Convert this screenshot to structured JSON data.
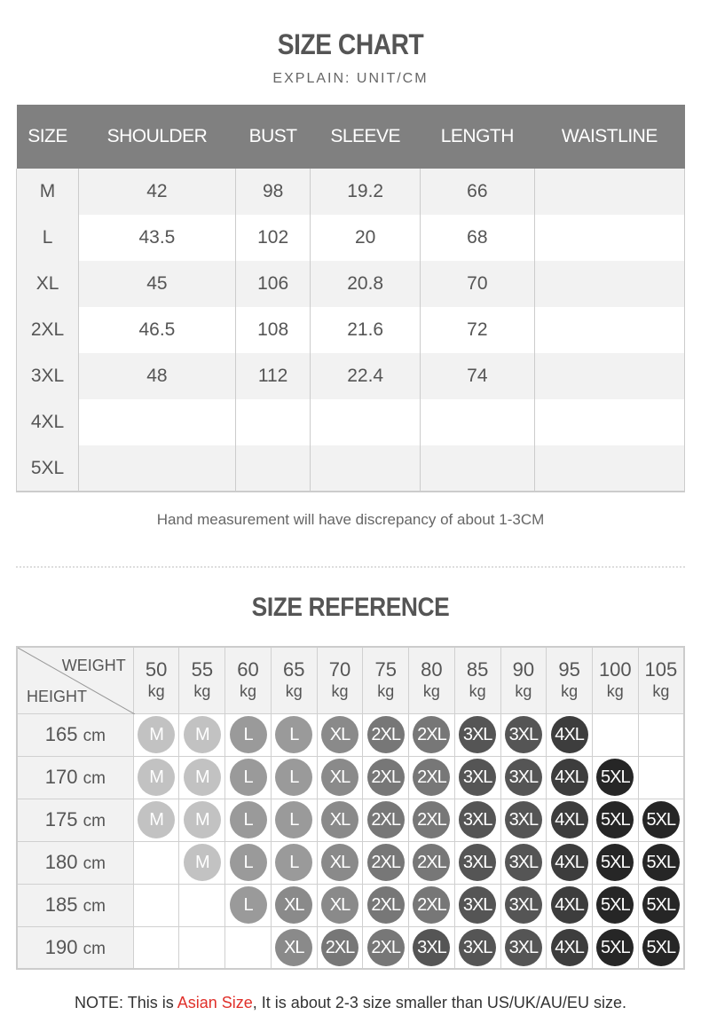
{
  "size_chart": {
    "title": "SIZE CHART",
    "subtitle": "EXPLAIN: UNIT/CM",
    "headers": [
      "SIZE",
      "SHOULDER",
      "BUST",
      "SLEEVE",
      "LENGTH",
      "WAISTLINE"
    ],
    "rows": [
      [
        "M",
        "42",
        "98",
        "19.2",
        "66",
        ""
      ],
      [
        "L",
        "43.5",
        "102",
        "20",
        "68",
        ""
      ],
      [
        "XL",
        "45",
        "106",
        "20.8",
        "70",
        ""
      ],
      [
        "2XL",
        "46.5",
        "108",
        "21.6",
        "72",
        ""
      ],
      [
        "3XL",
        "48",
        "112",
        "22.4",
        "74",
        ""
      ],
      [
        "4XL",
        "",
        "",
        "",
        "",
        ""
      ],
      [
        "5XL",
        "",
        "",
        "",
        "",
        ""
      ]
    ],
    "note": "Hand measurement will have discrepancy of about 1-3CM"
  },
  "size_reference": {
    "title": "SIZE REFERENCE",
    "weight_label": "WEIGHT",
    "height_label": "HEIGHT",
    "weights": [
      "50",
      "55",
      "60",
      "65",
      "70",
      "75",
      "80",
      "85",
      "90",
      "95",
      "100",
      "105"
    ],
    "weight_unit": "kg",
    "height_unit": "cm",
    "rows": [
      {
        "height": "165",
        "sizes": [
          "M",
          "M",
          "L",
          "L",
          "XL",
          "2XL",
          "2XL",
          "3XL",
          "3XL",
          "4XL",
          "",
          ""
        ]
      },
      {
        "height": "170",
        "sizes": [
          "M",
          "M",
          "L",
          "L",
          "XL",
          "2XL",
          "2XL",
          "3XL",
          "3XL",
          "4XL",
          "5XL",
          ""
        ]
      },
      {
        "height": "175",
        "sizes": [
          "M",
          "M",
          "L",
          "L",
          "XL",
          "2XL",
          "2XL",
          "3XL",
          "3XL",
          "4XL",
          "5XL",
          "5XL"
        ]
      },
      {
        "height": "180",
        "sizes": [
          "",
          "M",
          "L",
          "L",
          "XL",
          "2XL",
          "2XL",
          "3XL",
          "3XL",
          "4XL",
          "5XL",
          "5XL"
        ]
      },
      {
        "height": "185",
        "sizes": [
          "",
          "",
          "L",
          "XL",
          "XL",
          "2XL",
          "2XL",
          "3XL",
          "3XL",
          "4XL",
          "5XL",
          "5XL"
        ]
      },
      {
        "height": "190",
        "sizes": [
          "",
          "",
          "",
          "XL",
          "2XL",
          "2XL",
          "3XL",
          "3XL",
          "3XL",
          "4XL",
          "5XL",
          "5XL"
        ]
      }
    ],
    "size_colors": {
      "M": "#c2c2c2",
      "L": "#9a9a9a",
      "XL": "#8a8a8a",
      "2XL": "#777777",
      "3XL": "#555555",
      "4XL": "#3d3d3d",
      "5XL": "#262626"
    }
  },
  "footer": {
    "prefix": "NOTE: This is ",
    "highlight": "Asian Size",
    "suffix": ", It is about 2-3 size smaller than US/UK/AU/EU size.",
    "highlight_color": "#e0302a"
  }
}
